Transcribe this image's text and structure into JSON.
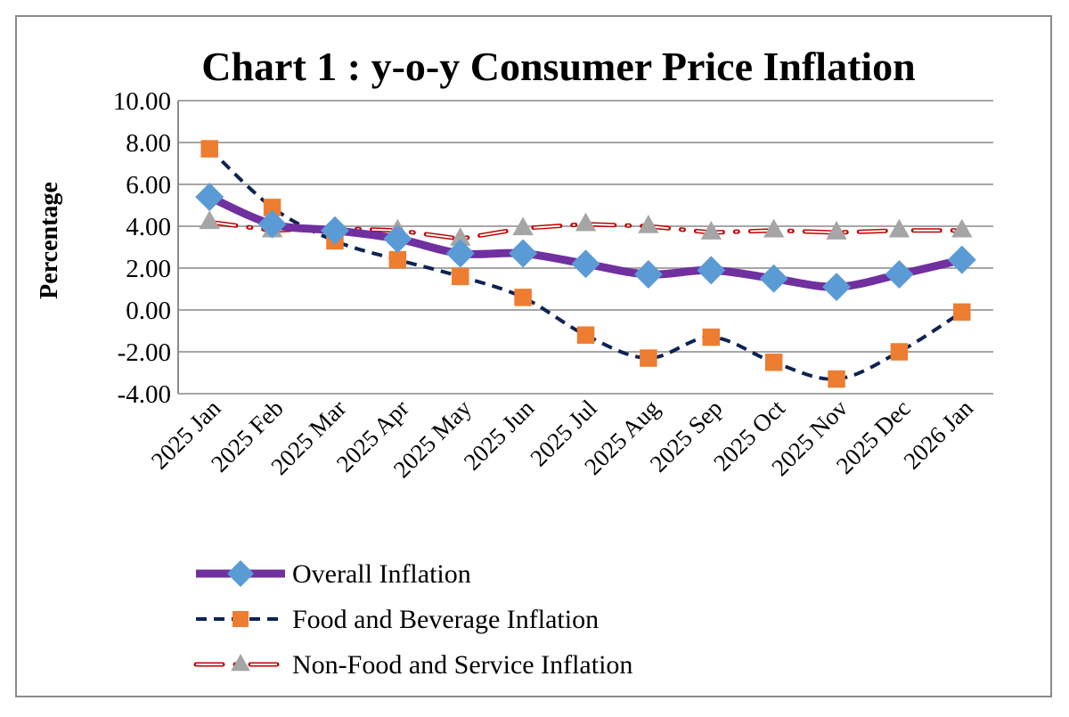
{
  "chart_data": {
    "type": "line",
    "title": "Chart 1 : y-o-y Consumer Price Inflation",
    "xlabel": "",
    "ylabel": "Percentage",
    "ylim": [
      -4,
      10
    ],
    "yticks": [
      "10.00",
      "8.00",
      "6.00",
      "4.00",
      "2.00",
      "0.00",
      "-2.00",
      "-4.00"
    ],
    "ytick_values": [
      10,
      8,
      6,
      4,
      2,
      0,
      -2,
      -4
    ],
    "grid": true,
    "legend_position": "bottom",
    "categories": [
      "2025 Jan",
      "2025 Feb",
      "2025 Mar",
      "2025 Apr",
      "2025 May",
      "2025 Jun",
      "2025 Jul",
      "2025 Aug",
      "2025 Sep",
      "2025 Oct",
      "2025 Nov",
      "2025 Dec",
      "2026 Jan"
    ],
    "series": [
      {
        "name": "Overall Inflation",
        "color": "#7030a0",
        "marker": "diamond",
        "marker_color": "#5b9bd5",
        "values": [
          5.4,
          4.1,
          3.8,
          3.4,
          2.7,
          2.7,
          2.2,
          1.7,
          1.9,
          1.5,
          1.1,
          1.7,
          2.4
        ]
      },
      {
        "name": "Food and Beverage Inflation",
        "color": "#0d2452",
        "marker": "square",
        "marker_color": "#ed7d31",
        "values": [
          7.7,
          4.9,
          3.3,
          2.4,
          1.6,
          0.6,
          -1.2,
          -2.3,
          -1.3,
          -2.5,
          -3.3,
          -2.0,
          -0.1
        ]
      },
      {
        "name": "Non-Food and Service Inflation",
        "color": "#c00000",
        "marker": "triangle",
        "marker_color": "#a5a5a5",
        "values": [
          4.2,
          3.8,
          3.9,
          3.8,
          3.4,
          3.9,
          4.1,
          4.0,
          3.7,
          3.8,
          3.7,
          3.8,
          3.8
        ]
      }
    ]
  }
}
